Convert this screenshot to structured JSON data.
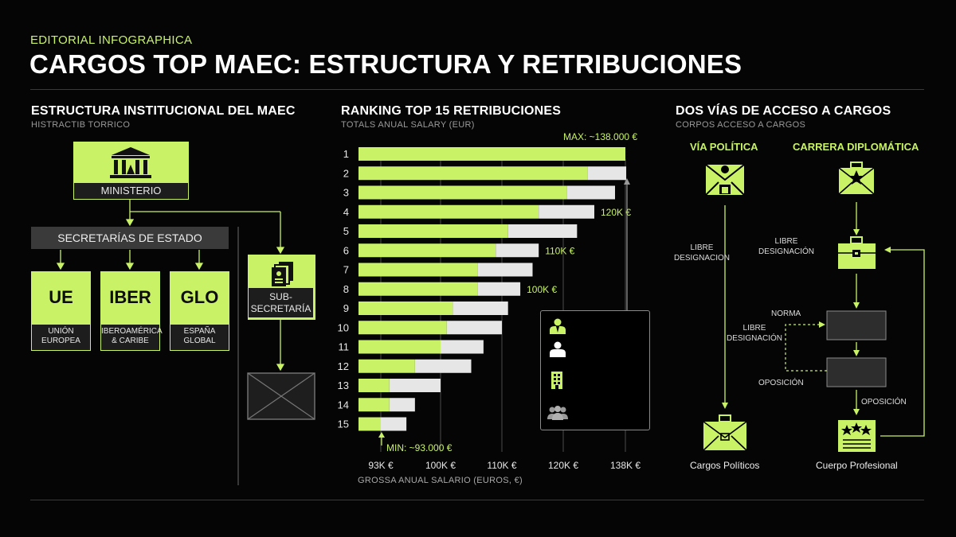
{
  "header": {
    "kicker": "EDITORIAL INFOGRAPHICA",
    "title": "CARGOS TOP MAEC: ESTRUCTURA Y RETRIBUCIONES"
  },
  "colors": {
    "accent": "#c9f266",
    "background": "#050505",
    "bar_secondary": "#e6e6e6"
  },
  "structure": {
    "title": "ESTRUCTURA INSTITUCIONAL DEL MAEC",
    "subtitle": "HISTRACTIB TORRICO",
    "ministerio": "MINISTERIO",
    "secretarias": "SECRETARÍAS DE ESTADO",
    "units": [
      {
        "code": "UE",
        "line1": "UNIÓN",
        "line2": "EUROPEA"
      },
      {
        "code": "IBER",
        "line1": "IBEROAMÉRICA",
        "line2": "& CARIBE"
      },
      {
        "code": "GLO",
        "line1": "ESPAÑA",
        "line2": "GLOBAL"
      }
    ],
    "sub_line1": "SUB-",
    "sub_line2": "SECRETARÍA",
    "icons": {
      "ministerio": "building-columns-icon",
      "sub": "documents-icon",
      "placeholder": "image-placeholder-icon"
    }
  },
  "ranking": {
    "title": "RANKING TOP 15 RETRIBUCIONES",
    "subtitle": "TOTALS ANUAL SALARY (EUR)",
    "max_label": "MAX: ~138.000 €",
    "min_label": "MIN: ~93.000 €",
    "x_axis_title": "GROSSA ANUAL SALARIO (EUROS, €)",
    "legend_icons": [
      "person-suit-icon",
      "person-icon",
      "building-icon",
      "group-icon"
    ]
  },
  "chart_data": {
    "type": "bar",
    "orientation": "horizontal",
    "categories": [
      "1",
      "2",
      "3",
      "4",
      "5",
      "6",
      "7",
      "8",
      "9",
      "10",
      "11",
      "12",
      "13",
      "14",
      "15"
    ],
    "series": [
      {
        "values": [
          138000,
          127000,
          121000,
          116000,
          111000,
          109000,
          106000,
          106000,
          102000,
          101000,
          100000,
          97000,
          94000,
          94000,
          93000
        ]
      },
      {
        "values": [
          0,
          12000,
          14000,
          13000,
          13000,
          7000,
          9000,
          7000,
          9000,
          9000,
          7000,
          8000,
          6000,
          3000,
          3000
        ]
      }
    ],
    "x_ticks": [
      "93K €",
      "100K €",
      "110K €",
      "120K €",
      "138K €"
    ],
    "x_tick_values": [
      93000,
      100000,
      110000,
      120000,
      138000
    ],
    "xlim": [
      93000,
      138000
    ],
    "annotations": [
      {
        "label": "120K €",
        "category": "4"
      },
      {
        "label": "110K €",
        "category": "6"
      },
      {
        "label": "100K €",
        "category": "8"
      }
    ],
    "xlabel": "GROSSA ANUAL SALARIO (EUROS, €)"
  },
  "access": {
    "title": "DOS VÍAS DE ACCESO A CARGOS",
    "subtitle": "CORPOS ACCESO A CARGOS",
    "political_title": "VÍA POLÍTICA",
    "diplomatic_title": "CARRERA DIPLOMÁTICA",
    "libre1": "LIBRE",
    "libre1b": "DESIGNACION",
    "libre2": "LIBRE",
    "libre2b": "DESIGNACIÓN",
    "libre3": "LIBRE",
    "libre3b": "DESIGNACIÓN",
    "norma": "NORMA",
    "oposicion1": "OPOSICIÓN",
    "oposicion2": "OPOSICIÓN",
    "cargos_politicos": "Cargos Políticos",
    "cuerpo_profesional": "Cuerpo Profesional"
  }
}
